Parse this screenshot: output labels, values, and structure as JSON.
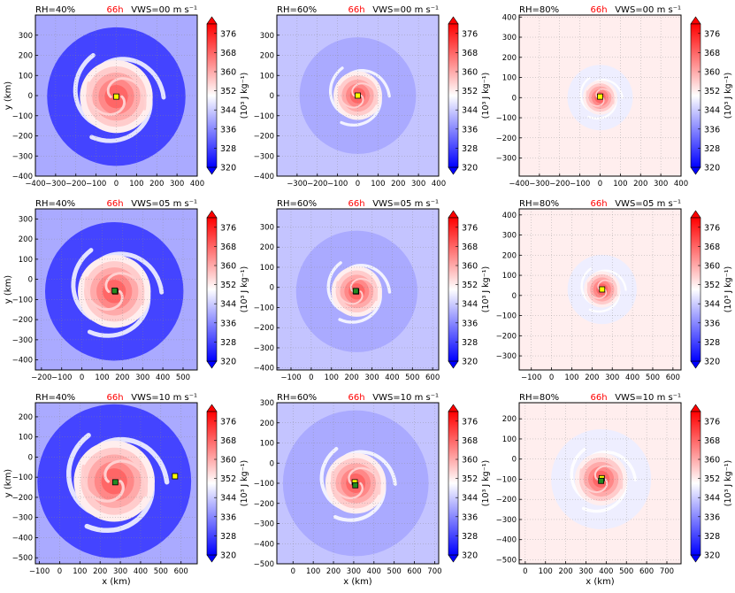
{
  "chart_data": {
    "type": "heatmap",
    "colorbar": {
      "ticks": [
        320,
        328,
        336,
        344,
        352,
        360,
        368,
        376
      ],
      "range": [
        320,
        380
      ],
      "label": "(10³ J kg⁻¹)",
      "extend": "both"
    },
    "colors": {
      "low": "#0000ff",
      "mid": "#ffffff",
      "high": "#ff0000",
      "marker_yellow": "#ffff00",
      "marker_green": "#228b22"
    },
    "time_label": "66h",
    "xlabel": "x (km)",
    "ylabel": "y (km)",
    "grid": true,
    "panels": [
      {
        "rh_label": "RH=40%",
        "vws_label": "VWS=00 m s⁻¹",
        "xlim": [
          -400,
          400
        ],
        "ylim": [
          -400,
          400
        ],
        "xticks": [
          -400,
          -300,
          -200,
          -100,
          0,
          100,
          200,
          300,
          400
        ],
        "yticks": [
          -400,
          -300,
          -200,
          -100,
          0,
          100,
          200,
          300
        ],
        "bg": 340,
        "ring": 328,
        "center": [
          0,
          -5
        ],
        "core_radius": 180,
        "markers": [
          {
            "x": 0,
            "y": -5,
            "color": "yellow"
          }
        ]
      },
      {
        "rh_label": "RH=60%",
        "vws_label": "VWS=00 m s⁻¹",
        "xlim": [
          -400,
          400
        ],
        "ylim": [
          -400,
          400
        ],
        "xticks": [
          -300,
          -200,
          -100,
          0,
          100,
          200,
          300,
          400
        ],
        "yticks": [
          -400,
          -300,
          -200,
          -100,
          0,
          100,
          200,
          300
        ],
        "bg": 343,
        "ring": null,
        "center": [
          0,
          0
        ],
        "core_radius": 120,
        "markers": [
          {
            "x": 0,
            "y": 0,
            "color": "yellow"
          }
        ]
      },
      {
        "rh_label": "RH=80%",
        "vws_label": "VWS=00 m s⁻¹",
        "xlim": [
          -400,
          400
        ],
        "ylim": [
          -390,
          410
        ],
        "xticks": [
          -400,
          -300,
          -200,
          -100,
          0,
          100,
          200,
          300,
          400
        ],
        "yticks": [
          -300,
          -200,
          -100,
          0,
          100,
          200,
          300,
          400
        ],
        "bg": 352,
        "ring": 348,
        "center": [
          0,
          0
        ],
        "core_radius": 85,
        "markers": [
          {
            "x": 0,
            "y": 5,
            "color": "yellow"
          }
        ]
      },
      {
        "rh_label": "RH=40%",
        "vws_label": "VWS=05 m s⁻¹",
        "xlim": [
          -230,
          570
        ],
        "ylim": [
          -450,
          350
        ],
        "xticks": [
          -200,
          -100,
          0,
          100,
          200,
          300,
          400,
          500
        ],
        "yticks": [
          -400,
          -300,
          -200,
          -100,
          0,
          100,
          200,
          300
        ],
        "bg": 340,
        "ring": 328,
        "center": [
          160,
          -60
        ],
        "core_radius": 180,
        "markers": [
          {
            "x": 165,
            "y": -60,
            "color": "yellow"
          },
          {
            "x": 162,
            "y": -56,
            "color": "green"
          }
        ]
      },
      {
        "rh_label": "RH=60%",
        "vws_label": "VWS=05 m s⁻¹",
        "xlim": [
          -170,
          630
        ],
        "ylim": [
          -410,
          390
        ],
        "xticks": [
          -100,
          0,
          100,
          200,
          300,
          400,
          500,
          600
        ],
        "yticks": [
          -400,
          -300,
          -200,
          -100,
          0,
          100,
          200,
          300
        ],
        "bg": 343,
        "ring": null,
        "center": [
          225,
          -20
        ],
        "core_radius": 125,
        "markers": [
          {
            "x": 222,
            "y": -20,
            "color": "yellow"
          },
          {
            "x": 220,
            "y": -18,
            "color": "green"
          }
        ]
      },
      {
        "rh_label": "RH=80%",
        "vws_label": "VWS=05 m s⁻¹",
        "xlim": [
          -160,
          640
        ],
        "ylim": [
          -370,
          430
        ],
        "xticks": [
          -100,
          0,
          100,
          200,
          300,
          400,
          500,
          600
        ],
        "yticks": [
          -300,
          -200,
          -100,
          0,
          100,
          200,
          300,
          400
        ],
        "bg": 352,
        "ring": 348,
        "center": [
          250,
          30
        ],
        "core_radius": 90,
        "markers": [
          {
            "x": 250,
            "y": 30,
            "color": "yellow"
          }
        ]
      },
      {
        "rh_label": "RH=40%",
        "vws_label": "VWS=10 m s⁻¹",
        "xlim": [
          -120,
          680
        ],
        "ylim": [
          -530,
          270
        ],
        "xticks": [
          -100,
          0,
          100,
          200,
          300,
          400,
          500,
          600
        ],
        "yticks": [
          -500,
          -400,
          -300,
          -200,
          -100,
          0,
          100,
          200
        ],
        "bg": 340,
        "ring": 328,
        "center": [
          270,
          -120
        ],
        "core_radius": 200,
        "markers": [
          {
            "x": 275,
            "y": -125,
            "color": "green"
          },
          {
            "x": 570,
            "y": -95,
            "color": "yellow"
          }
        ]
      },
      {
        "rh_label": "RH=60%",
        "vws_label": "VWS=10 m s⁻¹",
        "xlim": [
          -80,
          720
        ],
        "ylim": [
          -500,
          300
        ],
        "xticks": [
          0,
          100,
          200,
          300,
          400,
          500,
          600,
          700
        ],
        "yticks": [
          -500,
          -400,
          -300,
          -200,
          -100,
          0,
          100,
          200,
          300
        ],
        "bg": 343,
        "ring": null,
        "center": [
          310,
          -100
        ],
        "core_radius": 150,
        "markers": [
          {
            "x": 305,
            "y": -95,
            "color": "yellow"
          },
          {
            "x": 308,
            "y": -110,
            "color": "green"
          }
        ]
      },
      {
        "rh_label": "RH=80%",
        "vws_label": "VWS=10 m s⁻¹",
        "xlim": [
          -30,
          770
        ],
        "ylim": [
          -520,
          280
        ],
        "xticks": [
          0,
          100,
          200,
          300,
          400,
          500,
          600,
          700
        ],
        "yticks": [
          -500,
          -400,
          -300,
          -200,
          -100,
          0,
          100,
          200
        ],
        "bg": 352,
        "ring": 348,
        "center": [
          375,
          -100
        ],
        "core_radius": 130,
        "markers": [
          {
            "x": 378,
            "y": -95,
            "color": "yellow"
          },
          {
            "x": 375,
            "y": -108,
            "color": "green"
          }
        ]
      }
    ]
  }
}
